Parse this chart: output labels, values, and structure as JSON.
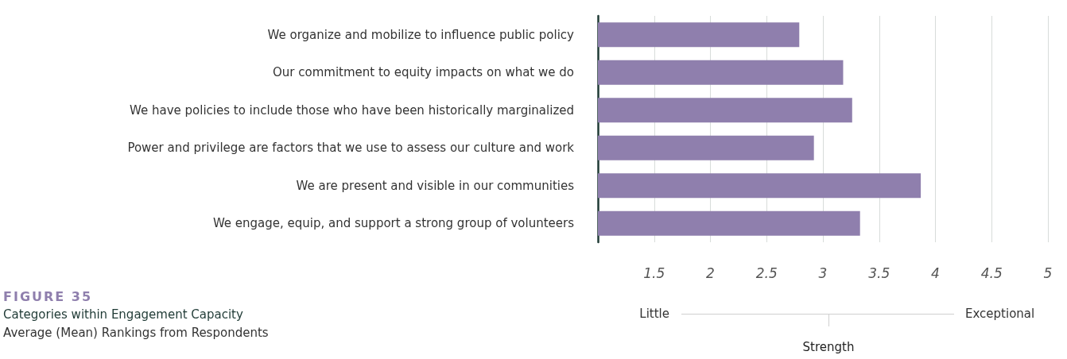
{
  "chart_data": {
    "type": "bar",
    "orientation": "horizontal",
    "title": "FIGURE 35",
    "subtitle": "Categories within Engagement Capacity",
    "annotations": [
      "Average (Mean) Rankings from Respondents",
      "Little",
      "Exceptional",
      "Strength"
    ],
    "categories": [
      "We organize and mobilize to influence public policy",
      "Our commitment to equity impacts on what we do",
      "We have policies to include those who have been historically marginalized",
      "Power and privilege are factors that we use to assess our culture and work",
      "We are present and visible in our communities",
      "We engage, equip, and support a strong group of volunteers"
    ],
    "values": [
      2.79,
      3.18,
      3.26,
      2.92,
      3.87,
      3.33
    ],
    "color": "#8f7fad",
    "xlim": [
      1,
      5
    ],
    "xticks": [
      1.5,
      2,
      2.5,
      3,
      3.5,
      4,
      4.5,
      5
    ],
    "grid": "x"
  }
}
